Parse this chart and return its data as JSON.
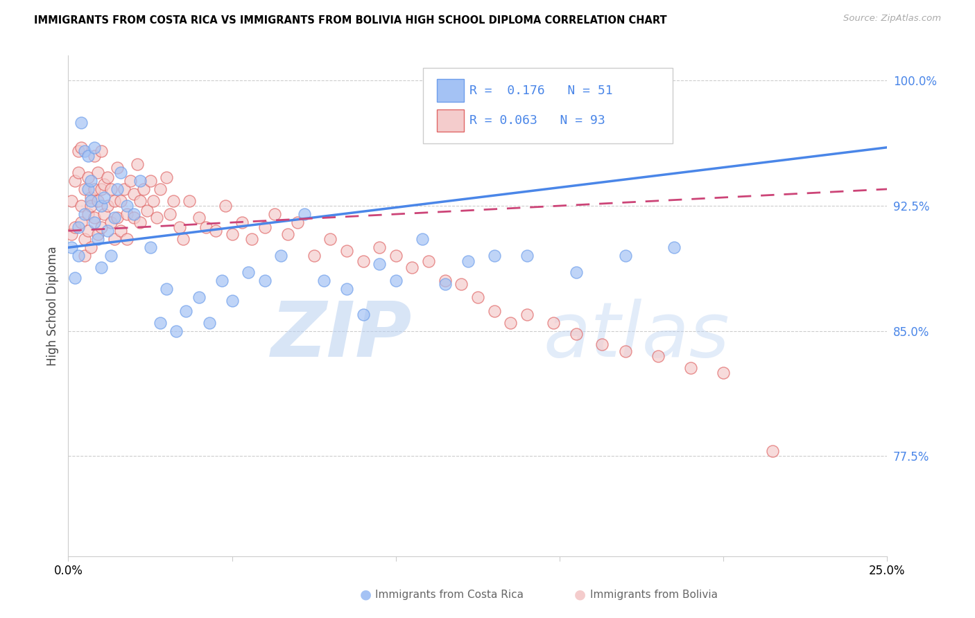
{
  "title": "IMMIGRANTS FROM COSTA RICA VS IMMIGRANTS FROM BOLIVIA HIGH SCHOOL DIPLOMA CORRELATION CHART",
  "source": "Source: ZipAtlas.com",
  "ylabel": "High School Diploma",
  "xmin": 0.0,
  "xmax": 0.25,
  "ymin": 0.715,
  "ymax": 1.015,
  "watermark_zip": "ZIP",
  "watermark_atlas": "atlas",
  "blue_fill": "#a4c2f4",
  "pink_fill": "#f4cccc",
  "blue_edge": "#6d9eeb",
  "pink_edge": "#e06666",
  "blue_line": "#4a86e8",
  "pink_line": "#cc4477",
  "grid_color": "#cccccc",
  "right_label_color": "#4a86e8",
  "legend_R1": "R =  0.176",
  "legend_N1": "N = 51",
  "legend_R2": "R = 0.063",
  "legend_N2": "N = 93",
  "costa_rica_x": [
    0.001,
    0.002,
    0.003,
    0.003,
    0.004,
    0.005,
    0.005,
    0.006,
    0.006,
    0.007,
    0.007,
    0.008,
    0.008,
    0.009,
    0.01,
    0.01,
    0.011,
    0.012,
    0.013,
    0.014,
    0.015,
    0.016,
    0.018,
    0.02,
    0.022,
    0.025,
    0.028,
    0.03,
    0.033,
    0.036,
    0.04,
    0.043,
    0.047,
    0.05,
    0.055,
    0.06,
    0.065,
    0.072,
    0.078,
    0.085,
    0.09,
    0.095,
    0.1,
    0.108,
    0.115,
    0.122,
    0.13,
    0.14,
    0.155,
    0.17,
    0.185
  ],
  "costa_rica_y": [
    0.9,
    0.882,
    0.912,
    0.895,
    0.975,
    0.958,
    0.92,
    0.955,
    0.935,
    0.94,
    0.928,
    0.96,
    0.915,
    0.905,
    0.925,
    0.888,
    0.93,
    0.91,
    0.895,
    0.918,
    0.935,
    0.945,
    0.925,
    0.92,
    0.94,
    0.9,
    0.855,
    0.875,
    0.85,
    0.862,
    0.87,
    0.855,
    0.88,
    0.868,
    0.885,
    0.88,
    0.895,
    0.92,
    0.88,
    0.875,
    0.86,
    0.89,
    0.88,
    0.905,
    0.878,
    0.892,
    0.895,
    0.895,
    0.885,
    0.895,
    0.9
  ],
  "bolivia_x": [
    0.001,
    0.001,
    0.002,
    0.002,
    0.003,
    0.003,
    0.004,
    0.004,
    0.004,
    0.005,
    0.005,
    0.005,
    0.006,
    0.006,
    0.006,
    0.007,
    0.007,
    0.007,
    0.008,
    0.008,
    0.008,
    0.009,
    0.009,
    0.009,
    0.01,
    0.01,
    0.01,
    0.011,
    0.011,
    0.012,
    0.012,
    0.013,
    0.013,
    0.014,
    0.014,
    0.015,
    0.015,
    0.016,
    0.016,
    0.017,
    0.018,
    0.018,
    0.019,
    0.02,
    0.02,
    0.021,
    0.022,
    0.022,
    0.023,
    0.024,
    0.025,
    0.026,
    0.027,
    0.028,
    0.03,
    0.031,
    0.032,
    0.034,
    0.035,
    0.037,
    0.04,
    0.042,
    0.045,
    0.048,
    0.05,
    0.053,
    0.056,
    0.06,
    0.063,
    0.067,
    0.07,
    0.075,
    0.08,
    0.085,
    0.09,
    0.095,
    0.1,
    0.105,
    0.11,
    0.115,
    0.12,
    0.125,
    0.13,
    0.135,
    0.14,
    0.148,
    0.155,
    0.163,
    0.17,
    0.18,
    0.19,
    0.2,
    0.215
  ],
  "bolivia_y": [
    0.928,
    0.908,
    0.94,
    0.912,
    0.945,
    0.958,
    0.915,
    0.925,
    0.96,
    0.895,
    0.935,
    0.905,
    0.92,
    0.942,
    0.91,
    0.93,
    0.925,
    0.9,
    0.918,
    0.935,
    0.955,
    0.908,
    0.928,
    0.945,
    0.935,
    0.912,
    0.958,
    0.92,
    0.938,
    0.925,
    0.942,
    0.915,
    0.935,
    0.928,
    0.905,
    0.918,
    0.948,
    0.91,
    0.928,
    0.935,
    0.92,
    0.905,
    0.94,
    0.918,
    0.932,
    0.95,
    0.928,
    0.915,
    0.935,
    0.922,
    0.94,
    0.928,
    0.918,
    0.935,
    0.942,
    0.92,
    0.928,
    0.912,
    0.905,
    0.928,
    0.918,
    0.912,
    0.91,
    0.925,
    0.908,
    0.915,
    0.905,
    0.912,
    0.92,
    0.908,
    0.915,
    0.895,
    0.905,
    0.898,
    0.892,
    0.9,
    0.895,
    0.888,
    0.892,
    0.88,
    0.878,
    0.87,
    0.862,
    0.855,
    0.86,
    0.855,
    0.848,
    0.842,
    0.838,
    0.835,
    0.828,
    0.825,
    0.778
  ],
  "blue_line_x0": 0.0,
  "blue_line_x1": 0.25,
  "blue_line_y0": 0.9,
  "blue_line_y1": 0.96,
  "pink_line_x0": 0.0,
  "pink_line_x1": 0.25,
  "pink_line_y0": 0.91,
  "pink_line_y1": 0.935
}
